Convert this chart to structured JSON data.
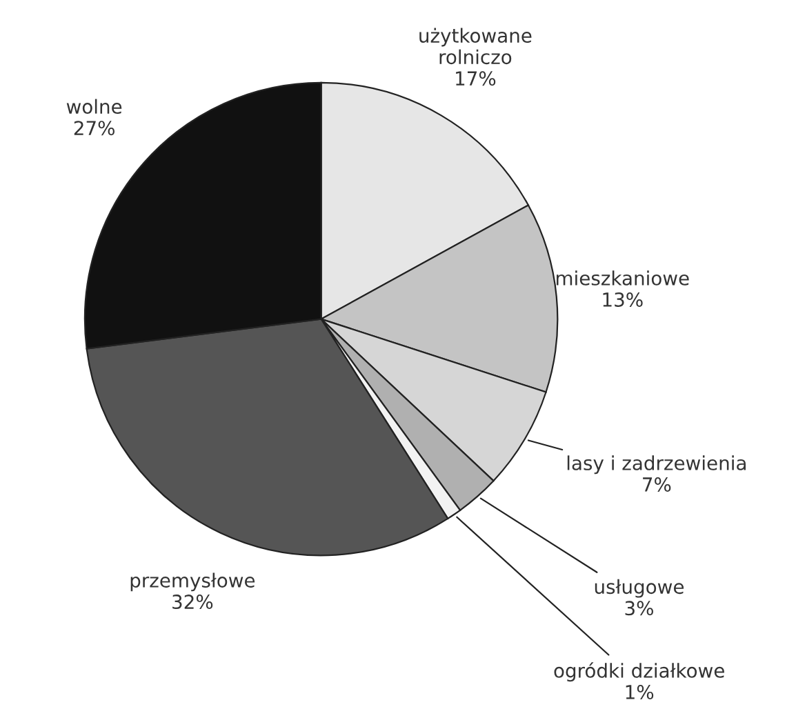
{
  "chart_data": {
    "type": "pie",
    "categories": [
      "użytkowane\nrolniczo",
      "mieszkaniowe",
      "lasy i zadrzewienia",
      "usługowe",
      "ogródki działkowe",
      "przemysłowe",
      "wolne"
    ],
    "values": [
      17,
      13,
      7,
      3,
      1,
      32,
      27
    ],
    "value_labels": [
      "17%",
      "13%",
      "7%",
      "3%",
      "1%",
      "32%",
      "27%"
    ],
    "colors": [
      "#e6e6e6",
      "#c4c4c4",
      "#d6d6d6",
      "#b0b0b0",
      "#f2f2f2",
      "#555555",
      "#111111"
    ]
  }
}
